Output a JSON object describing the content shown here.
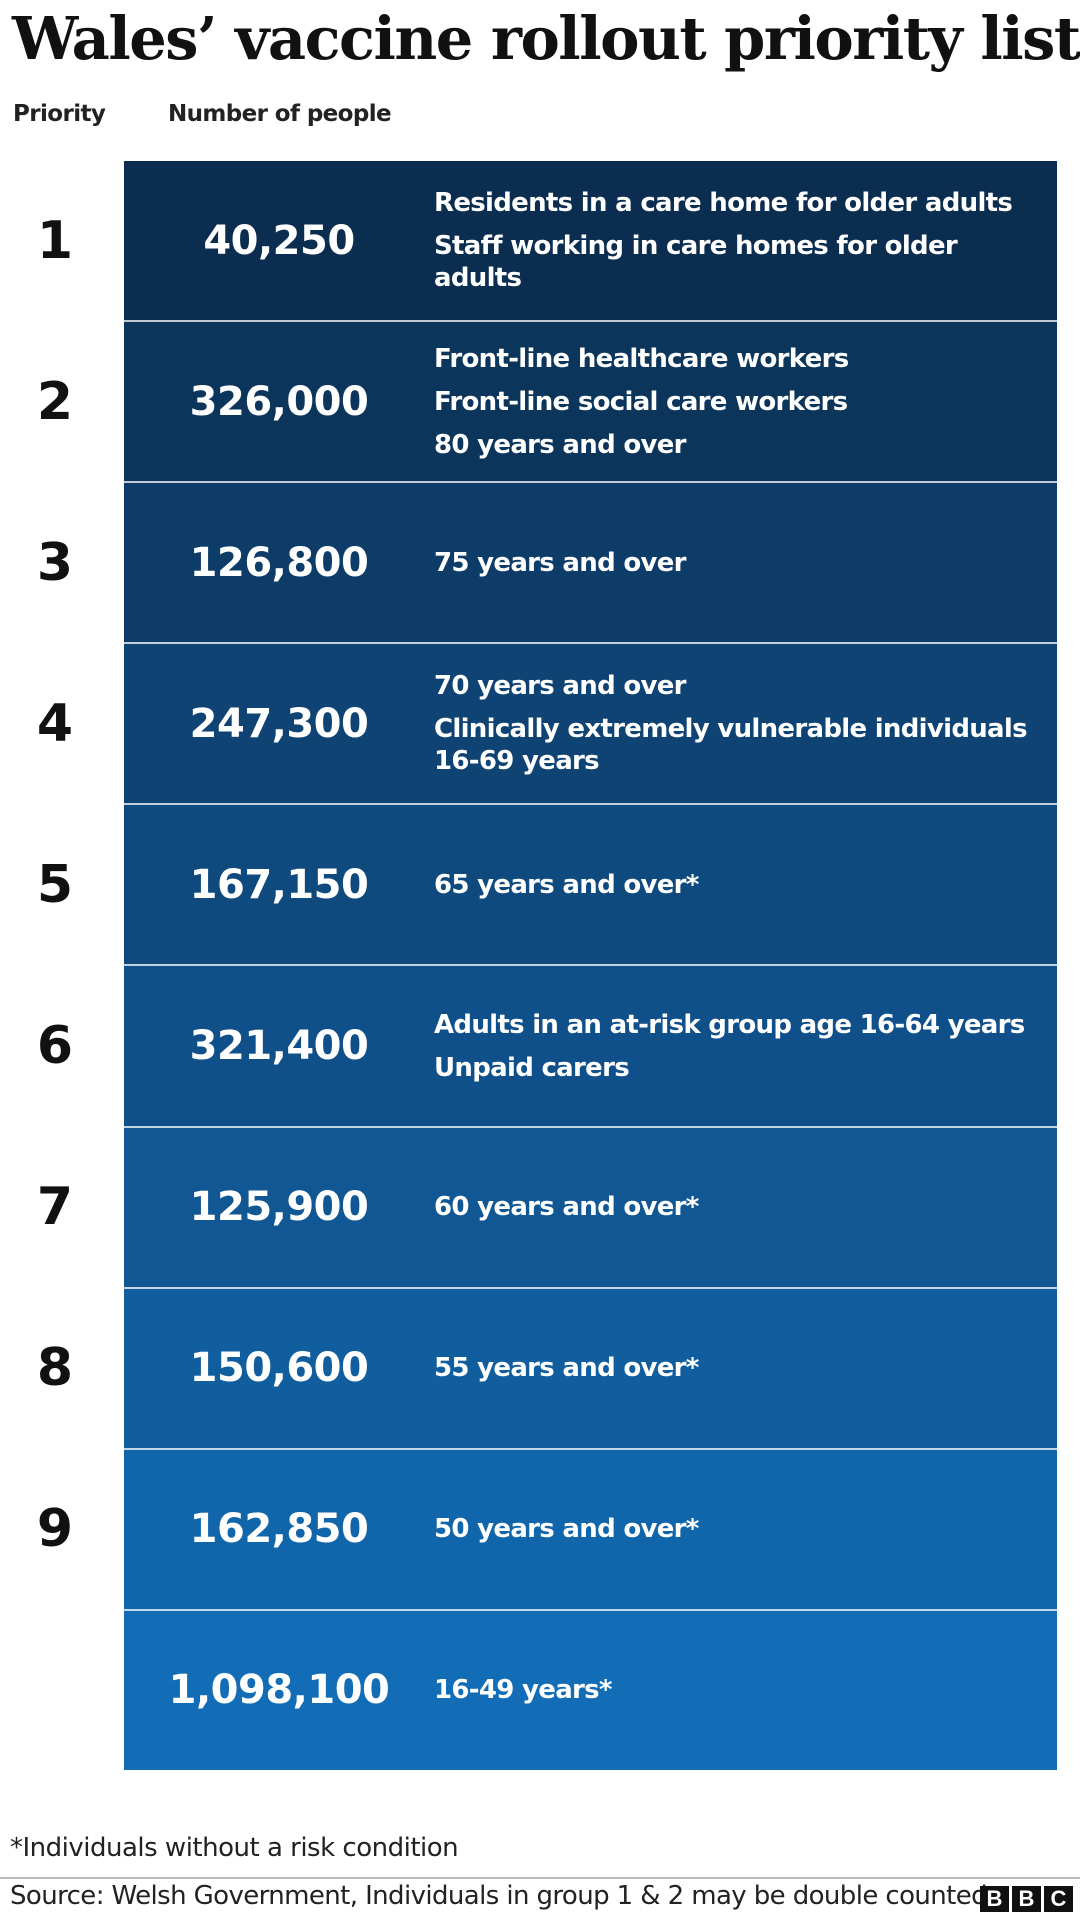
{
  "title": "Wales’ vaccine rollout priority list",
  "headers": {
    "priority": "Priority",
    "number": "Number of people"
  },
  "rows": [
    {
      "priority": "1",
      "number": "40,250",
      "color": "#0b2d4f",
      "groups": [
        "Residents in a care home for older adults",
        "Staff working in care homes for older adults"
      ]
    },
    {
      "priority": "2",
      "number": "326,000",
      "color": "#0c355c",
      "groups": [
        "Front-line healthcare workers",
        "Front-line social care workers",
        "80 years and over"
      ]
    },
    {
      "priority": "3",
      "number": "126,800",
      "color": "#0d3c68",
      "groups": [
        "75 years and over"
      ]
    },
    {
      "priority": "4",
      "number": "247,300",
      "color": "#0e4373",
      "groups": [
        "70 years and over",
        "Clinically extremely vulnerable individuals\n16-69 years"
      ]
    },
    {
      "priority": "5",
      "number": "167,150",
      "color": "#0f4a7e",
      "groups": [
        "65 years and over*"
      ]
    },
    {
      "priority": "6",
      "number": "321,400",
      "color": "#10508a",
      "groups": [
        "Adults in an at-risk group age 16-64 years",
        "Unpaid carers"
      ]
    },
    {
      "priority": "7",
      "number": "125,900",
      "color": "#105794",
      "groups": [
        "60 years and over*"
      ]
    },
    {
      "priority": "8",
      "number": "150,600",
      "color": "#115e9f",
      "groups": [
        "55 years and over*"
      ]
    },
    {
      "priority": "9",
      "number": "162,850",
      "color": "#1165aa",
      "groups": [
        "50 years and over*"
      ]
    },
    {
      "priority": "",
      "number": "1,098,100",
      "color": "#126db6",
      "groups": [
        "16-49 years*"
      ]
    }
  ],
  "footnote": "*Individuals without a risk condition",
  "source": "Source: Welsh Government, Individuals in group 1 & 2 may be double counted",
  "logo": {
    "letters": [
      "B",
      "B",
      "C"
    ]
  }
}
